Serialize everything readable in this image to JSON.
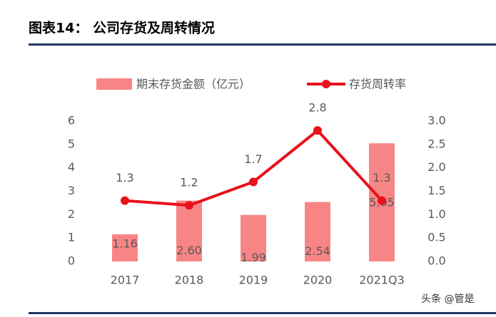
{
  "chart_data": {
    "type": "bar-line",
    "title": "图表14：  公司存货及周转情况",
    "watermark": "头条 @管是",
    "categories": [
      "2017",
      "2018",
      "2019",
      "2020",
      "2021Q3"
    ],
    "series": [
      {
        "name": "期末存货金额（亿元）",
        "type": "bar",
        "color": "#f88585",
        "values": [
          1.16,
          2.6,
          1.99,
          2.54,
          5.05
        ],
        "value_labels": [
          "1.16",
          "2.60",
          "1.99",
          "2.54",
          "5.05"
        ]
      },
      {
        "name": "存货周转率",
        "type": "line",
        "axis": "y2",
        "color": "#e8121a",
        "values": [
          1.3,
          1.2,
          1.7,
          2.8,
          1.3
        ]
      }
    ],
    "ylim": [
      0,
      6
    ],
    "yticks": [
      0,
      1,
      2,
      3,
      4,
      5,
      6
    ],
    "y2lim": [
      0,
      3
    ],
    "y2ticks": [
      {
        "value": 0,
        "label": "0.0"
      },
      {
        "value": 0.5,
        "label": "0.5"
      },
      {
        "value": 1,
        "label": "1.0"
      },
      {
        "value": 1.5,
        "label": "1.5"
      },
      {
        "value": 2,
        "label": "2.0"
      },
      {
        "value": 2.5,
        "label": "2.5"
      },
      {
        "value": 3,
        "label": "3.0"
      }
    ],
    "legend": "top"
  }
}
